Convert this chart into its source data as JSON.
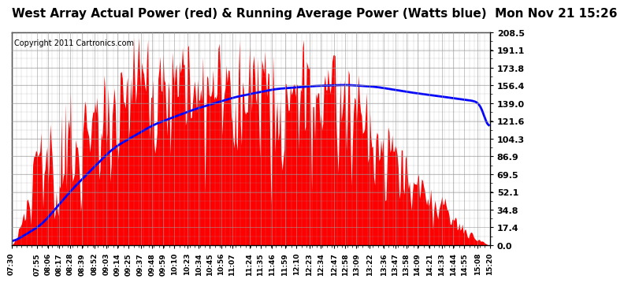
{
  "title": "West Array Actual Power (red) & Running Average Power (Watts blue)  Mon Nov 21 15:26",
  "copyright": "Copyright 2011 Cartronics.com",
  "ylabel_ticks": [
    0.0,
    17.4,
    34.8,
    52.1,
    69.5,
    86.9,
    104.3,
    121.6,
    139.0,
    156.4,
    173.8,
    191.1,
    208.5
  ],
  "ymax": 208.5,
  "ymin": 0.0,
  "bar_color": "#FF0000",
  "line_color": "#0000FF",
  "background_color": "#FFFFFF",
  "grid_color": "#999999",
  "title_fontsize": 11,
  "copyright_fontsize": 7,
  "time_labels": [
    "07:30",
    "07:55",
    "08:06",
    "08:17",
    "08:28",
    "08:39",
    "08:52",
    "09:03",
    "09:14",
    "09:25",
    "09:37",
    "09:48",
    "09:59",
    "10:10",
    "10:23",
    "10:34",
    "10:45",
    "10:56",
    "11:07",
    "11:24",
    "11:35",
    "11:46",
    "11:59",
    "12:10",
    "12:23",
    "12:34",
    "12:47",
    "12:58",
    "13:09",
    "13:22",
    "13:36",
    "13:47",
    "13:58",
    "14:09",
    "14:21",
    "14:33",
    "14:44",
    "14:55",
    "15:08",
    "15:20"
  ]
}
